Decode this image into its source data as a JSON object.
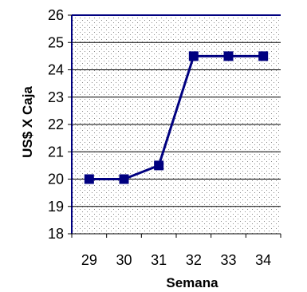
{
  "chart_data": {
    "type": "line",
    "title": "",
    "xlabel": "Semana",
    "ylabel": "US$ X Caja",
    "x": [
      29,
      30,
      31,
      32,
      33,
      34
    ],
    "ylim": [
      18,
      26
    ],
    "yticks": [
      18,
      19,
      20,
      21,
      22,
      23,
      24,
      25,
      26
    ],
    "grid": "horizontal",
    "series": [
      {
        "values": [
          20,
          20,
          20.5,
          24.5,
          24.5,
          24.5
        ],
        "color": "#000080",
        "marker": "square"
      }
    ],
    "plot_background": "dotted",
    "plot_border_color": "#000080"
  }
}
